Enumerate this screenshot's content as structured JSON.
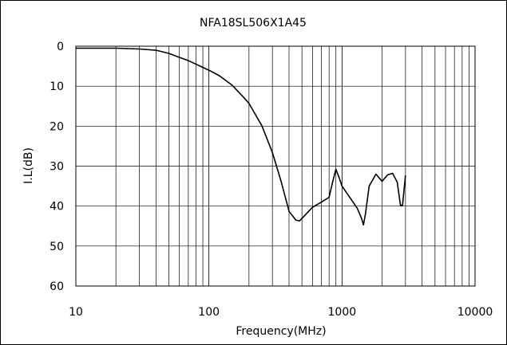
{
  "chart_data": {
    "type": "line",
    "title": "NFA18SL506X1A45",
    "xlabel": "Frequency(MHz)",
    "ylabel": "I.L(dB)",
    "x_scale": "log",
    "xlim": [
      10,
      10000
    ],
    "ylim": [
      0,
      60
    ],
    "y_inverted": true,
    "grid": true,
    "x_ticks": [
      "10",
      "100",
      "1000",
      "10000"
    ],
    "y_ticks": [
      "0",
      "10",
      "20",
      "30",
      "40",
      "50",
      "60"
    ],
    "series": [
      {
        "color": "#000000",
        "x": [
          10,
          20,
          30,
          40,
          50,
          60,
          70,
          80,
          90,
          100,
          120,
          150,
          180,
          200,
          250,
          300,
          350,
          400,
          450,
          480,
          520,
          600,
          700,
          800,
          850,
          900,
          950,
          1000,
          1100,
          1200,
          1300,
          1400,
          1450,
          1500,
          1600,
          1800,
          2000,
          2200,
          2400,
          2600,
          2750,
          2850,
          3000
        ],
        "y": [
          0.5,
          0.5,
          0.7,
          1.0,
          1.8,
          2.8,
          3.6,
          4.5,
          5.3,
          6.0,
          7.4,
          9.8,
          12.6,
          14.3,
          19.9,
          26.6,
          34.0,
          41.3,
          43.5,
          43.7,
          42.5,
          40.3,
          39.0,
          37.8,
          34.0,
          30.8,
          32.8,
          35.0,
          37.0,
          38.8,
          40.5,
          43.0,
          44.7,
          42.0,
          35.0,
          32.0,
          33.8,
          32.2,
          31.8,
          34.0,
          39.8,
          39.8,
          32.3
        ]
      }
    ]
  }
}
